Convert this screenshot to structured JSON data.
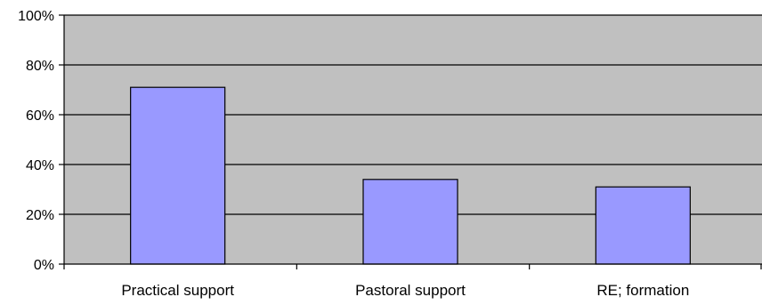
{
  "chart_data": {
    "type": "bar",
    "categories": [
      "Practical support",
      "Pastoral support",
      "RE; formation"
    ],
    "values": [
      71,
      34,
      31
    ],
    "ylim": [
      0,
      100
    ],
    "yticks": [
      0,
      20,
      40,
      60,
      80,
      100
    ],
    "ytick_labels": [
      "0%",
      "20%",
      "40%",
      "60%",
      "80%",
      "100%"
    ],
    "grid": true,
    "legend": "none",
    "colors": {
      "bar_fill": "#9999ff",
      "bar_stroke": "#000000",
      "plot_background": "#c0c0c0",
      "gridline": "#000000",
      "axis": "#000000"
    }
  }
}
